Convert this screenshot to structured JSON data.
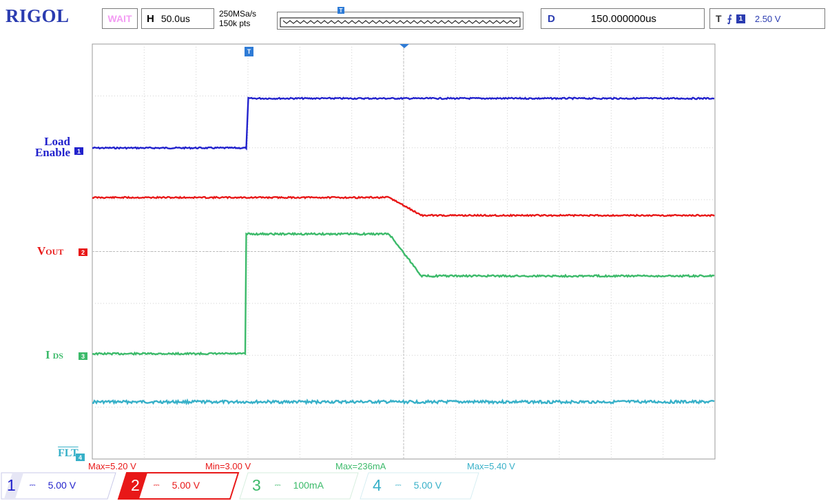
{
  "header": {
    "brand": "RIGOL",
    "run_status": "WAIT",
    "timebase_key": "H",
    "timebase_value": "50.0us",
    "sample_rate": "250MSa/s",
    "memory_depth": "150k pts",
    "delay_key": "D",
    "delay_value": "150.000000us",
    "trigger_key": "T",
    "trigger_edge": "rising-edge-icon",
    "trigger_source": "1",
    "trigger_level": "2.50 V"
  },
  "labels": {
    "ch1_line1": "Load",
    "ch1_line2": "Enable",
    "ch1_marker": "1",
    "ch2_main": "V",
    "ch2_sub": "OUT",
    "ch2_marker": "2",
    "ch3_main": "I",
    "ch3_sub": "DS",
    "ch3_marker": "3",
    "ch4_text": "FLT",
    "ch4_marker": "4",
    "trig_pos_marker": "T"
  },
  "measurements": [
    "Max=5.20 V",
    "Min=3.00 V",
    "Max=236mA",
    "Max=5.40 V"
  ],
  "channels": [
    {
      "num": "1",
      "scale": "5.00 V",
      "color": "#2222cc"
    },
    {
      "num": "2",
      "scale": "5.00 V",
      "color": "#e81818"
    },
    {
      "num": "3",
      "scale": "100mA",
      "color": "#3cba6a"
    },
    {
      "num": "4",
      "scale": "5.00 V",
      "color": "#37b0c8"
    }
  ],
  "chart_data": {
    "type": "line",
    "x_divisions": 12,
    "y_divisions": 8,
    "series": [
      {
        "name": "Load Enable",
        "color": "#2222cc"
      },
      {
        "name": "VOUT",
        "color": "#e81818"
      },
      {
        "name": "IDS",
        "color": "#3cba6a"
      },
      {
        "name": "FLT",
        "color": "#37b0c8"
      }
    ]
  }
}
